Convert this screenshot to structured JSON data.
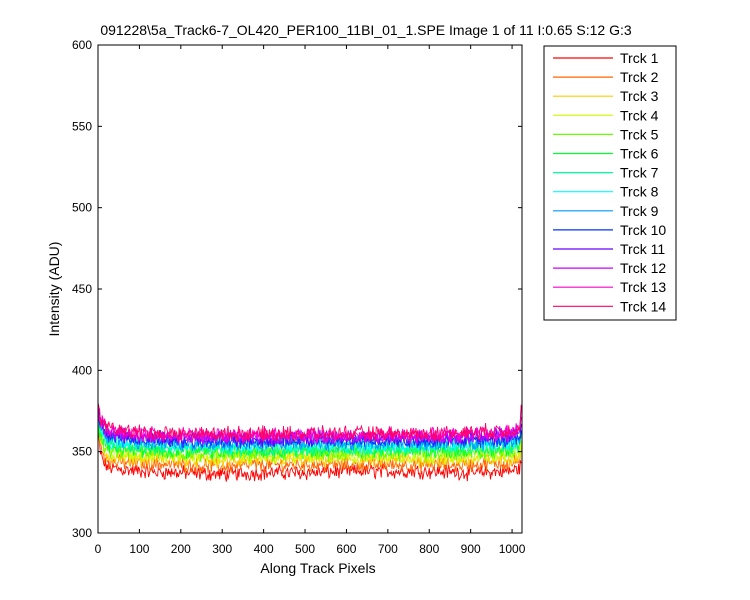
{
  "chart_data": {
    "type": "line",
    "title": "091228\\5a_Track6-7_OL420_PER100_11BI_01_1.SPE  Image 1 of 11  I:0.65  S:12  G:3",
    "xlabel": "Along Track Pixels",
    "ylabel": "Intensity (ADU)",
    "xlim": [
      0,
      1024
    ],
    "ylim": [
      300,
      600
    ],
    "xticks": [
      0,
      100,
      200,
      300,
      400,
      500,
      600,
      700,
      800,
      900,
      1000
    ],
    "yticks": [
      300,
      350,
      400,
      450,
      500,
      550,
      600
    ],
    "grid": false,
    "legend_position": "outside-right",
    "x_sample": [
      0,
      5,
      15,
      30,
      60,
      100,
      200,
      300,
      400,
      500,
      600,
      700,
      800,
      900,
      1000,
      1018,
      1023
    ],
    "series": [
      {
        "name": "Trck 1",
        "color": "#ff0000",
        "values": [
          362,
          350,
          342,
          340,
          339,
          338,
          337,
          336,
          337,
          337,
          338,
          338,
          338,
          337,
          338,
          340,
          346
        ]
      },
      {
        "name": "Trck 2",
        "color": "#ff6600",
        "values": [
          365,
          354,
          347,
          344,
          343,
          343,
          342,
          341,
          342,
          342,
          342,
          342,
          342,
          342,
          343,
          345,
          351
        ]
      },
      {
        "name": "Trck 3",
        "color": "#ffcc00",
        "values": [
          367,
          357,
          350,
          347,
          346,
          346,
          345,
          344,
          345,
          345,
          345,
          345,
          345,
          345,
          346,
          348,
          354
        ]
      },
      {
        "name": "Trck 4",
        "color": "#ccff00",
        "values": [
          369,
          359,
          352,
          349,
          348,
          348,
          347,
          347,
          347,
          347,
          347,
          347,
          347,
          347,
          348,
          350,
          356
        ]
      },
      {
        "name": "Trck 5",
        "color": "#66ff00",
        "values": [
          370,
          361,
          354,
          351,
          350,
          350,
          349,
          349,
          349,
          349,
          349,
          349,
          349,
          349,
          350,
          352,
          358
        ]
      },
      {
        "name": "Trck 6",
        "color": "#00ff33",
        "values": [
          371,
          362,
          356,
          353,
          352,
          351,
          351,
          350,
          351,
          351,
          351,
          351,
          351,
          351,
          352,
          354,
          360
        ]
      },
      {
        "name": "Trck 7",
        "color": "#00ff99",
        "values": [
          372,
          364,
          358,
          355,
          354,
          353,
          352,
          352,
          352,
          352,
          352,
          352,
          352,
          353,
          354,
          356,
          362
        ]
      },
      {
        "name": "Trck 8",
        "color": "#00ffff",
        "values": [
          373,
          365,
          359,
          356,
          355,
          355,
          354,
          353,
          354,
          354,
          354,
          354,
          354,
          354,
          355,
          357,
          363
        ]
      },
      {
        "name": "Trck 9",
        "color": "#0099ff",
        "values": [
          374,
          367,
          361,
          358,
          357,
          356,
          355,
          355,
          355,
          355,
          355,
          355,
          355,
          356,
          357,
          359,
          365
        ]
      },
      {
        "name": "Trck 10",
        "color": "#0033ff",
        "values": [
          375,
          368,
          362,
          359,
          358,
          357,
          357,
          356,
          357,
          357,
          357,
          357,
          357,
          357,
          358,
          360,
          366
        ]
      },
      {
        "name": "Trck 11",
        "color": "#6600ff",
        "values": [
          376,
          369,
          364,
          361,
          360,
          359,
          358,
          358,
          358,
          358,
          358,
          358,
          358,
          359,
          360,
          362,
          368
        ]
      },
      {
        "name": "Trck 12",
        "color": "#cc00ff",
        "values": [
          377,
          370,
          365,
          362,
          361,
          360,
          359,
          359,
          359,
          359,
          359,
          359,
          359,
          360,
          361,
          363,
          370
        ]
      },
      {
        "name": "Trck 13",
        "color": "#ff00cc",
        "values": [
          378,
          371,
          366,
          363,
          362,
          361,
          360,
          360,
          360,
          360,
          360,
          360,
          360,
          361,
          362,
          364,
          375
        ]
      },
      {
        "name": "Trck 14",
        "color": "#ff0066",
        "values": [
          379,
          372,
          367,
          364,
          363,
          362,
          361,
          361,
          361,
          361,
          361,
          361,
          361,
          362,
          363,
          365,
          383
        ]
      }
    ]
  }
}
